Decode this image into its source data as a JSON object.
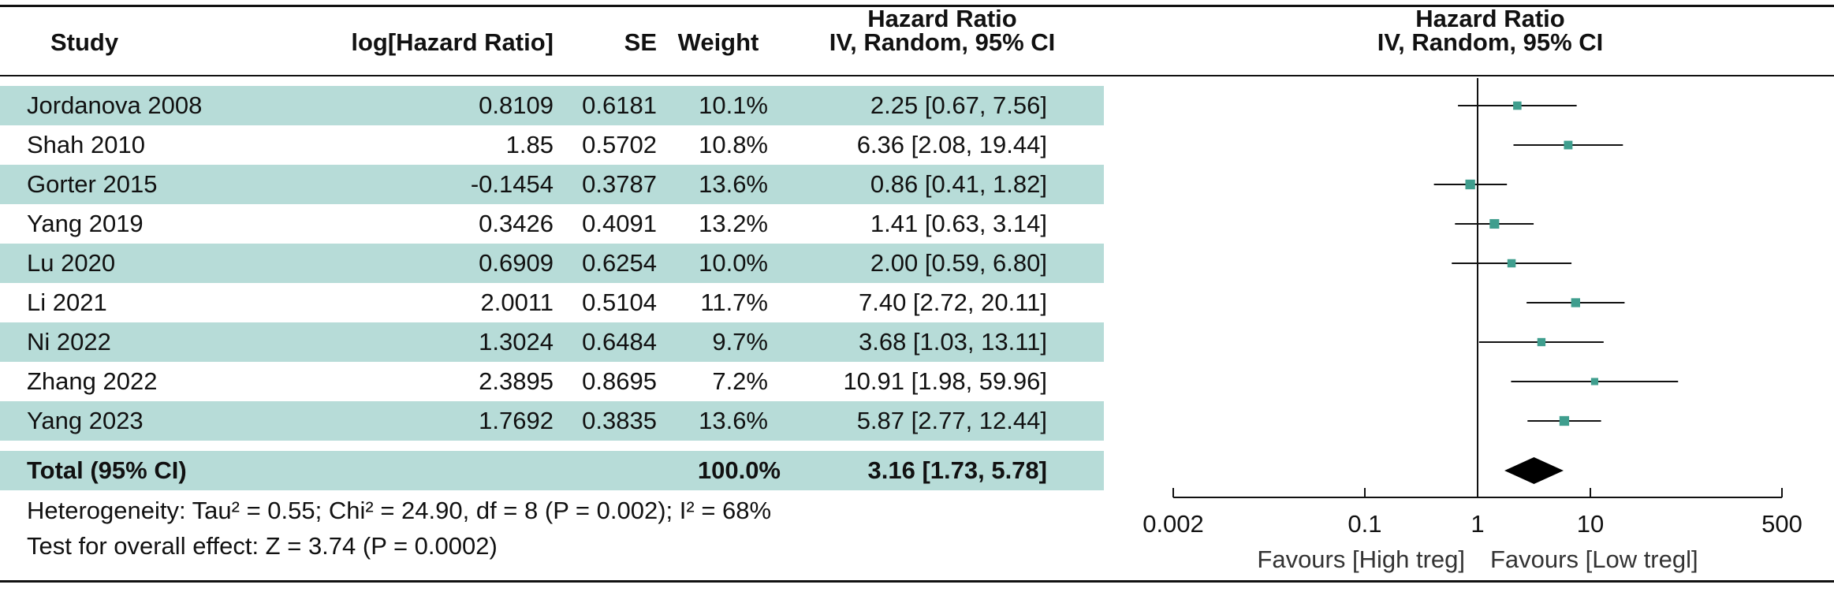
{
  "headers": {
    "study": "Study",
    "loghr": "log[Hazard Ratio]",
    "se": "SE",
    "weight": "Weight",
    "hr_line1": "Hazard Ratio",
    "hr_line2": "IV, Random, 95% CI",
    "plot_line1": "Hazard Ratio",
    "plot_line2": "IV, Random, 95% CI"
  },
  "studies": [
    {
      "study": "Jordanova 2008",
      "loghr": "0.8109",
      "se": "0.6181",
      "weight": "10.1%",
      "hr_text": "2.25 [0.67, 7.56]"
    },
    {
      "study": "Shah 2010",
      "loghr": "1.85",
      "se": "0.5702",
      "weight": "10.8%",
      "hr_text": "6.36 [2.08, 19.44]"
    },
    {
      "study": "Gorter 2015",
      "loghr": "-0.1454",
      "se": "0.3787",
      "weight": "13.6%",
      "hr_text": "0.86 [0.41, 1.82]"
    },
    {
      "study": "Yang 2019",
      "loghr": "0.3426",
      "se": "0.4091",
      "weight": "13.2%",
      "hr_text": "1.41 [0.63, 3.14]"
    },
    {
      "study": "Lu 2020",
      "loghr": "0.6909",
      "se": "0.6254",
      "weight": "10.0%",
      "hr_text": "2.00 [0.59, 6.80]"
    },
    {
      "study": "Li 2021",
      "loghr": "2.0011",
      "se": "0.5104",
      "weight": "11.7%",
      "hr_text": "7.40 [2.72, 20.11]"
    },
    {
      "study": "Ni 2022",
      "loghr": "1.3024",
      "se": "0.6484",
      "weight": "9.7%",
      "hr_text": "3.68 [1.03, 13.11]"
    },
    {
      "study": "Zhang 2022",
      "loghr": "2.3895",
      "se": "0.8695",
      "weight": "7.2%",
      "hr_text": "10.91 [1.98, 59.96]"
    },
    {
      "study": "Yang 2023",
      "loghr": "1.7692",
      "se": "0.3835",
      "weight": "13.6%",
      "hr_text": "5.87 [2.77, 12.44]"
    }
  ],
  "total": {
    "label": "Total (95% CI)",
    "weight": "100.0%",
    "hr_text": "3.16 [1.73, 5.78]"
  },
  "heterogeneity": "Heterogeneity: Tau² = 0.55; Chi² = 24.90, df = 8 (P = 0.002); I² = 68%",
  "overall_effect": "Test for overall effect: Z = 3.74 (P = 0.0002)",
  "chart_data": {
    "type": "scatter",
    "title": "",
    "x_scale": "log",
    "xlim": [
      0.002,
      500
    ],
    "x_ticks": [
      {
        "value": 0.002,
        "label": "0.002"
      },
      {
        "value": 0.1,
        "label": "0.1"
      },
      {
        "value": 1,
        "label": "1"
      },
      {
        "value": 10,
        "label": "10"
      },
      {
        "value": 500,
        "label": "500"
      }
    ],
    "reference_line": 1,
    "favours_left": "Favours [High treg]",
    "favours_right": "Favours [Low tregl]",
    "points": [
      {
        "hr": 2.25,
        "lo": 0.67,
        "hi": 7.56,
        "weight": 10.1
      },
      {
        "hr": 6.36,
        "lo": 2.08,
        "hi": 19.44,
        "weight": 10.8
      },
      {
        "hr": 0.86,
        "lo": 0.41,
        "hi": 1.82,
        "weight": 13.6
      },
      {
        "hr": 1.41,
        "lo": 0.63,
        "hi": 3.14,
        "weight": 13.2
      },
      {
        "hr": 2.0,
        "lo": 0.59,
        "hi": 6.8,
        "weight": 10.0
      },
      {
        "hr": 7.4,
        "lo": 2.72,
        "hi": 20.11,
        "weight": 11.7
      },
      {
        "hr": 3.68,
        "lo": 1.03,
        "hi": 13.11,
        "weight": 9.7
      },
      {
        "hr": 10.91,
        "lo": 1.98,
        "hi": 59.96,
        "weight": 7.2
      },
      {
        "hr": 5.87,
        "lo": 2.77,
        "hi": 12.44,
        "weight": 13.6
      }
    ],
    "pooled": {
      "hr": 3.16,
      "lo": 1.73,
      "hi": 5.78
    },
    "colors": {
      "marker": "#3f9e8e",
      "row_shade": "#b7dcd8",
      "line": "#111111"
    }
  }
}
